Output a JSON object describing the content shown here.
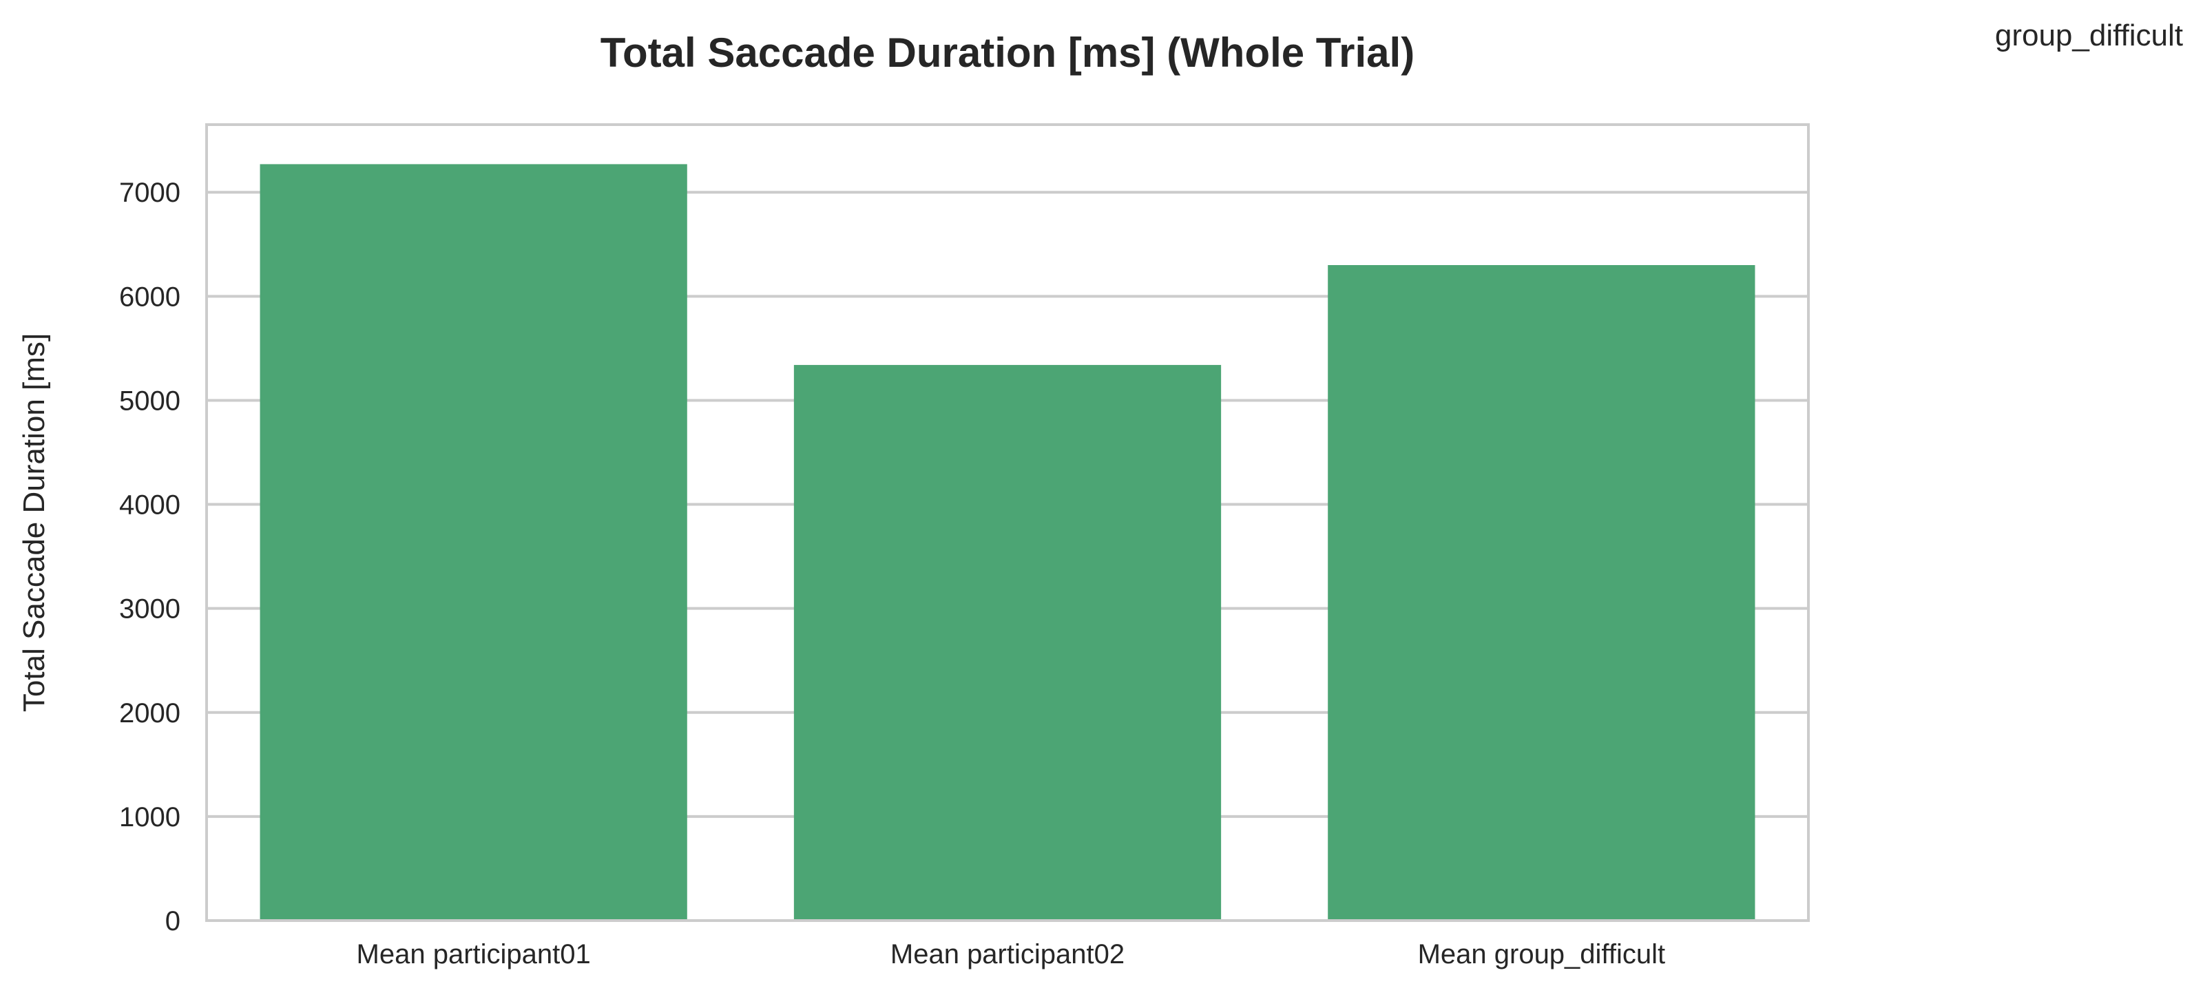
{
  "header": {
    "corner_label": "group_difficult"
  },
  "chart_data": {
    "type": "bar",
    "title": "Total Saccade Duration [ms] (Whole Trial)",
    "xlabel": "",
    "ylabel": "Total Saccade Duration [ms]",
    "categories": [
      "Mean participant01",
      "Mean participant02",
      "Mean group_difficult"
    ],
    "values": [
      7270,
      5340,
      6300
    ],
    "ylim": [
      0,
      7650
    ],
    "yticks": [
      0,
      1000,
      2000,
      3000,
      4000,
      5000,
      6000,
      7000
    ],
    "grid": true,
    "legend": "none",
    "bar_color": "#4ca574",
    "grid_color": "#cccccc",
    "frame_color": "#cccccc",
    "text_color": "#262626"
  }
}
